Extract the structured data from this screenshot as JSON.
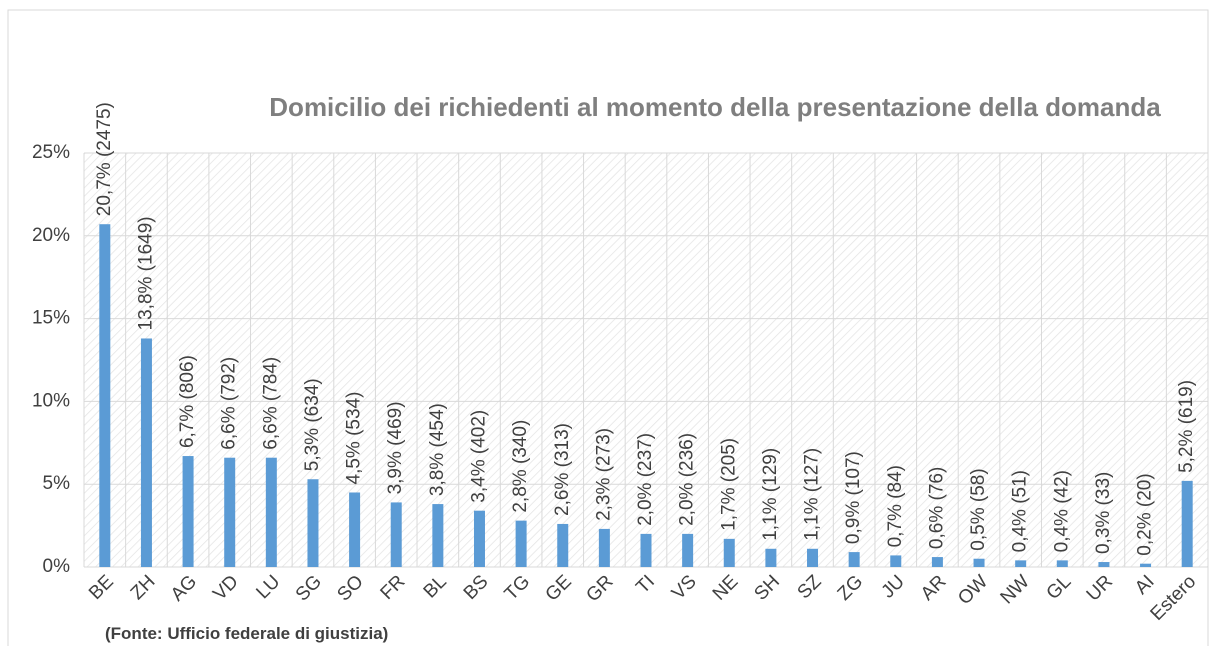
{
  "chart_data": {
    "type": "bar",
    "title": "Domicilio dei richiedenti al momento della presentazione della domanda",
    "source": "(Fonte: Ufficio federale di giustizia)",
    "categories": [
      "BE",
      "ZH",
      "AG",
      "VD",
      "LU",
      "SG",
      "SO",
      "FR",
      "BL",
      "BS",
      "TG",
      "GE",
      "GR",
      "TI",
      "VS",
      "NE",
      "SH",
      "SZ",
      "ZG",
      "JU",
      "AR",
      "OW",
      "NW",
      "GL",
      "UR",
      "AI",
      "Estero"
    ],
    "values": [
      20.7,
      13.8,
      6.7,
      6.6,
      6.6,
      5.3,
      4.5,
      3.9,
      3.8,
      3.4,
      2.8,
      2.6,
      2.3,
      2.0,
      2.0,
      1.7,
      1.1,
      1.1,
      0.9,
      0.7,
      0.6,
      0.5,
      0.4,
      0.4,
      0.3,
      0.2,
      5.2
    ],
    "value_labels": [
      "20,7% (2475)",
      "13,8% (1649)",
      "6,7% (806)",
      "6,6% (792)",
      "6,6% (784)",
      "5,3% (634)",
      "4,5% (534)",
      "3,9% (469)",
      "3,8% (454)",
      "3,4% (402)",
      "2,8% (340)",
      "2,6% (313)",
      "2,3% (273)",
      "2,0% (237)",
      "2,0% (236)",
      "1,7% (205)",
      "1,1% (129)",
      "1,1% (127)",
      "0,9% (107)",
      "0,7% (84)",
      "0,6% (76)",
      "0,5% (58)",
      "0,4% (51)",
      "0,4% (42)",
      "0,3% (33)",
      "0,2% (20)",
      "5,2% (619)"
    ],
    "color": "#5b9bd5",
    "ylim": [
      0,
      25
    ],
    "yticks": [
      {
        "value": 0,
        "label": "0%"
      },
      {
        "value": 5,
        "label": "5%"
      },
      {
        "value": 10,
        "label": "10%"
      },
      {
        "value": 15,
        "label": "15%"
      },
      {
        "value": 20,
        "label": "20%"
      },
      {
        "value": 25,
        "label": "25%"
      }
    ],
    "grid": true
  }
}
